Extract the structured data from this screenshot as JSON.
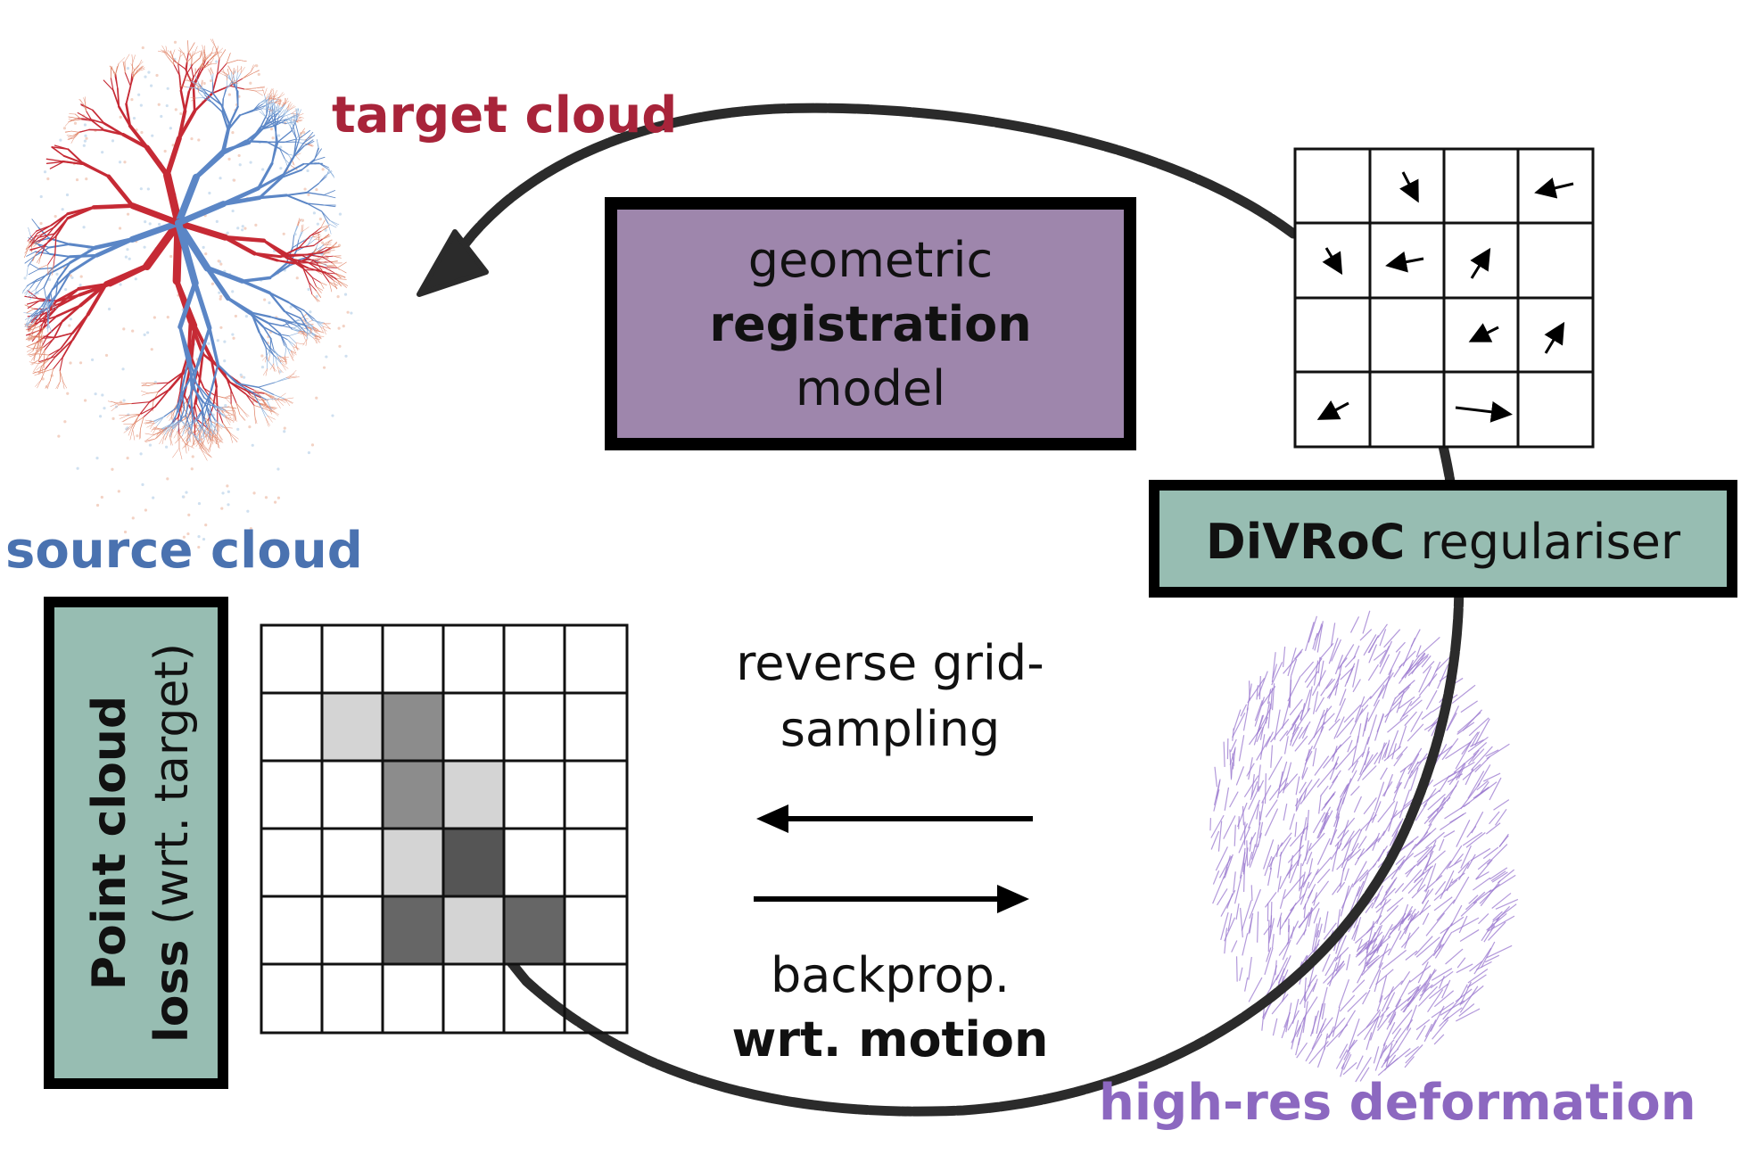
{
  "labels": {
    "target_cloud": "target cloud",
    "source_cloud": "source cloud",
    "high_res_deformation": "high-res deformation"
  },
  "registration_box": {
    "line1": "geometric",
    "line2": "registration",
    "line3": "model"
  },
  "regulariser_box": {
    "bold": "DiVRoC",
    "normal": "regulariser"
  },
  "loss_box": {
    "line1_bold": "Point cloud",
    "line2_bold": "loss",
    "line2_normal": "(wrt. target)"
  },
  "sampling_text": {
    "line1": "reverse grid-",
    "line2": "sampling"
  },
  "backprop_text": {
    "line1": "backprop.",
    "line2": "wrt. motion"
  },
  "colors": {
    "target_red": "#a8243a",
    "source_blue": "#4a72b0",
    "deformation_purple": "#8c68c0",
    "registration_fill": "#9e86ac",
    "teal_fill": "#97bdb2",
    "loop_stroke": "#2b2b2b"
  },
  "icons": {
    "lung_point_cloud": "lung-point-cloud-image",
    "deformation_field": "deformation-vector-field-image"
  }
}
